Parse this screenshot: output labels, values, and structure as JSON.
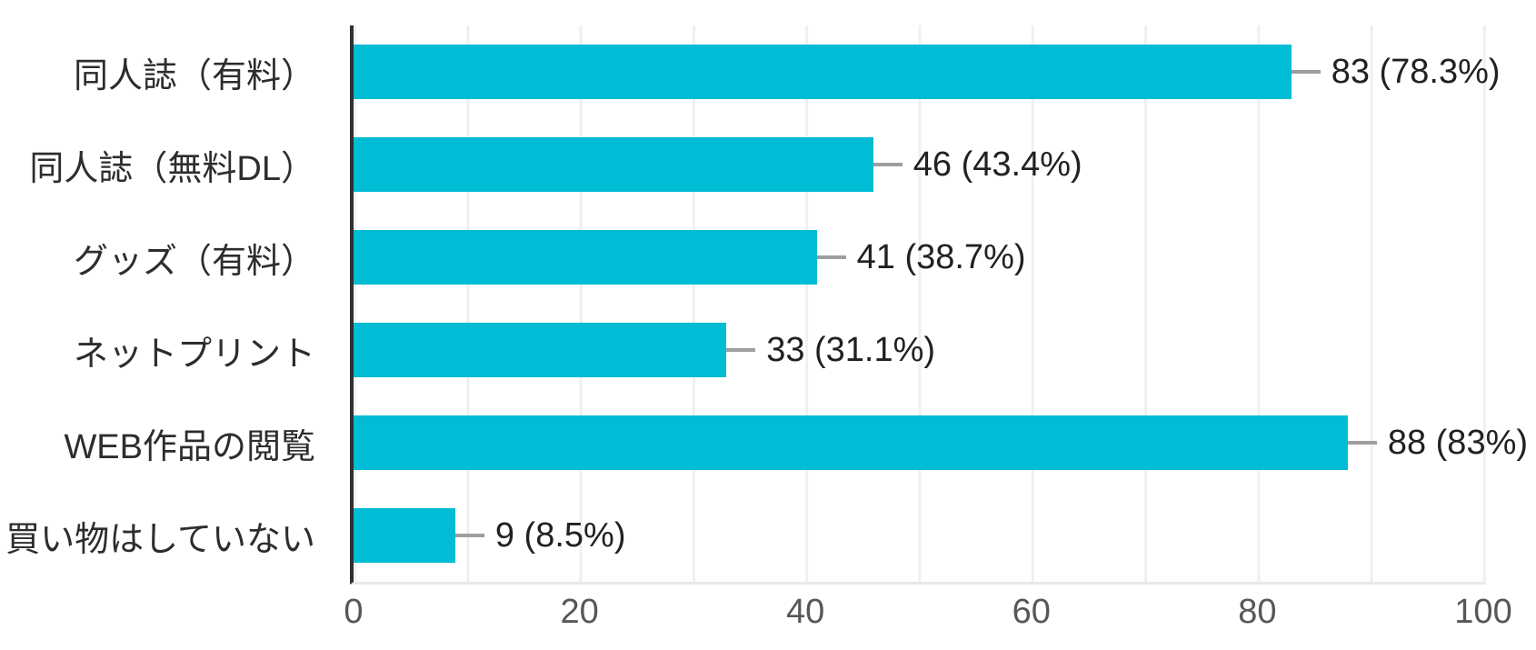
{
  "chart_data": {
    "type": "bar",
    "orientation": "horizontal",
    "categories": [
      "同人誌（有料）",
      "同人誌（無料DL）",
      "グッズ（有料）",
      "ネットプリント",
      "WEB作品の閲覧",
      "買い物はしていない"
    ],
    "values": [
      83,
      46,
      41,
      33,
      88,
      9
    ],
    "percentages": [
      78.3,
      43.4,
      38.7,
      31.1,
      83,
      8.5
    ],
    "value_labels": [
      "83 (78.3%)",
      "46 (43.4%)",
      "41 (38.7%)",
      "33 (31.1%)",
      "88 (83%)",
      "9 (8.5%)"
    ],
    "xticks": [
      0,
      20,
      40,
      60,
      80,
      100
    ],
    "xlim": [
      0,
      100
    ],
    "grid": "vertical lines every 10 units",
    "legend": "none",
    "bar_color": "#00bcd4",
    "connector_color": "#9e9e9e",
    "axis_line_color": "#2f2f2f",
    "gridline_color": "#f0f0f0",
    "label_color": "#2d2d2d",
    "value_label_color": "#212121",
    "tick_label_color": "#575757"
  }
}
